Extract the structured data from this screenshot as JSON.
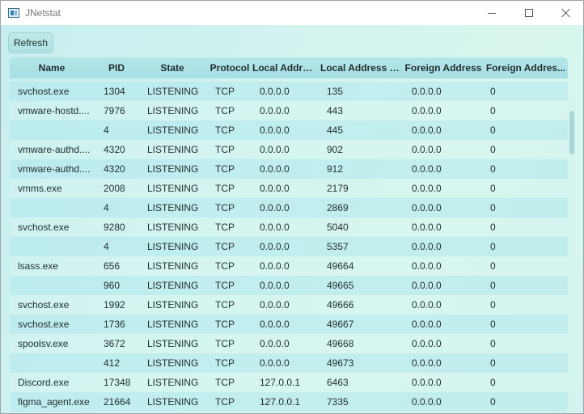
{
  "window": {
    "title": "JNetstat"
  },
  "toolbar": {
    "refresh_label": "Refresh"
  },
  "table": {
    "columns": [
      "Name",
      "PID",
      "State",
      "Protocol",
      "Local Address",
      "Local Address P...",
      "Foreign Address",
      "Foreign Addres..."
    ],
    "rows": [
      [
        "svchost.exe",
        "1304",
        "LISTENING",
        "TCP",
        "0.0.0.0",
        "135",
        "0.0.0.0",
        "0"
      ],
      [
        "vmware-hostd....",
        "7976",
        "LISTENING",
        "TCP",
        "0.0.0.0",
        "443",
        "0.0.0.0",
        "0"
      ],
      [
        "",
        "4",
        "LISTENING",
        "TCP",
        "0.0.0.0",
        "445",
        "0.0.0.0",
        "0"
      ],
      [
        "vmware-authd....",
        "4320",
        "LISTENING",
        "TCP",
        "0.0.0.0",
        "902",
        "0.0.0.0",
        "0"
      ],
      [
        "vmware-authd....",
        "4320",
        "LISTENING",
        "TCP",
        "0.0.0.0",
        "912",
        "0.0.0.0",
        "0"
      ],
      [
        "vmms.exe",
        "2008",
        "LISTENING",
        "TCP",
        "0.0.0.0",
        "2179",
        "0.0.0.0",
        "0"
      ],
      [
        "",
        "4",
        "LISTENING",
        "TCP",
        "0.0.0.0",
        "2869",
        "0.0.0.0",
        "0"
      ],
      [
        "svchost.exe",
        "9280",
        "LISTENING",
        "TCP",
        "0.0.0.0",
        "5040",
        "0.0.0.0",
        "0"
      ],
      [
        "",
        "4",
        "LISTENING",
        "TCP",
        "0.0.0.0",
        "5357",
        "0.0.0.0",
        "0"
      ],
      [
        "lsass.exe",
        "656",
        "LISTENING",
        "TCP",
        "0.0.0.0",
        "49664",
        "0.0.0.0",
        "0"
      ],
      [
        "",
        "960",
        "LISTENING",
        "TCP",
        "0.0.0.0",
        "49665",
        "0.0.0.0",
        "0"
      ],
      [
        "svchost.exe",
        "1992",
        "LISTENING",
        "TCP",
        "0.0.0.0",
        "49666",
        "0.0.0.0",
        "0"
      ],
      [
        "svchost.exe",
        "1736",
        "LISTENING",
        "TCP",
        "0.0.0.0",
        "49667",
        "0.0.0.0",
        "0"
      ],
      [
        "spoolsv.exe",
        "3672",
        "LISTENING",
        "TCP",
        "0.0.0.0",
        "49668",
        "0.0.0.0",
        "0"
      ],
      [
        "",
        "412",
        "LISTENING",
        "TCP",
        "0.0.0.0",
        "49673",
        "0.0.0.0",
        "0"
      ],
      [
        "Discord.exe",
        "17348",
        "LISTENING",
        "TCP",
        "127.0.0.1",
        "6463",
        "0.0.0.0",
        "0"
      ],
      [
        "figma_agent.exe",
        "21664",
        "LISTENING",
        "TCP",
        "127.0.0.1",
        "7335",
        "0.0.0.0",
        "0"
      ]
    ]
  },
  "icons": {
    "app": "app-icon",
    "minimize": "minimize-icon",
    "maximize": "maximize-icon",
    "close": "close-icon"
  }
}
